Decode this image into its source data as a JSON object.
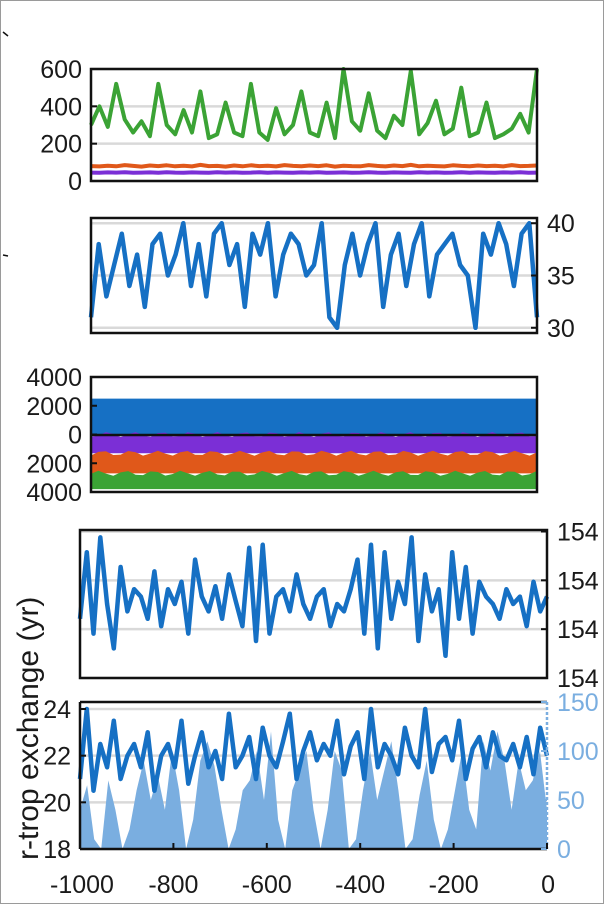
{
  "chart_data": [
    {
      "type": "line",
      "xlim": [
        -1000,
        0
      ],
      "ylim": [
        0,
        600
      ],
      "yticks": [
        "0",
        "200",
        "400",
        "600"
      ],
      "grid": true,
      "series": [
        {
          "color": "#3ba335",
          "values": [
            300,
            400,
            290,
            520,
            330,
            260,
            320,
            240,
            520,
            300,
            250,
            380,
            260,
            480,
            230,
            250,
            420,
            260,
            240,
            520,
            260,
            220,
            390,
            250,
            300,
            480,
            260,
            240,
            420,
            230,
            600,
            320,
            270,
            470,
            270,
            230,
            350,
            300,
            590,
            250,
            310,
            430,
            250,
            280,
            500,
            240,
            260,
            420,
            230,
            250,
            280,
            360,
            260,
            600
          ]
        },
        {
          "color": "#e0581a",
          "values": [
            80,
            78,
            82,
            79,
            85,
            81,
            77,
            83,
            80,
            84,
            79,
            82,
            78,
            86,
            80,
            81,
            77,
            83,
            79,
            84,
            80,
            82,
            78,
            85,
            81,
            79,
            83,
            80,
            84,
            77,
            82,
            80,
            79,
            85,
            81,
            78,
            83,
            80,
            86,
            79,
            82,
            80,
            78,
            84,
            81,
            79,
            83,
            80,
            82,
            78,
            85,
            80,
            81,
            83
          ]
        },
        {
          "color": "#7b2fd6",
          "values": [
            45,
            44,
            46,
            45,
            47,
            44,
            45,
            46,
            44,
            47,
            45,
            44,
            46,
            45,
            44,
            47,
            45,
            46,
            44,
            45,
            47,
            44,
            46,
            45,
            44,
            46,
            45,
            47,
            44,
            45,
            46,
            44,
            45,
            47,
            45,
            44,
            46,
            45,
            44,
            47,
            45,
            46,
            44,
            45,
            47,
            44,
            46,
            45,
            44,
            46,
            45,
            47,
            44,
            45
          ]
        }
      ]
    },
    {
      "type": "line",
      "xlim": [
        -1000,
        0
      ],
      "ylim": [
        29.5,
        40.5
      ],
      "yticks": [
        "30",
        "35",
        "40"
      ],
      "grid": true,
      "series": [
        {
          "color": "#1670c4",
          "values": [
            31,
            38,
            33,
            36,
            39,
            34,
            37,
            32,
            38,
            39,
            35,
            37,
            40,
            34,
            38,
            33,
            39,
            40,
            36,
            38,
            32,
            39,
            37,
            40,
            33,
            37,
            39,
            38,
            35,
            36,
            40,
            31,
            30,
            36,
            39,
            35,
            38,
            40,
            32,
            37,
            39,
            34,
            38,
            40,
            33,
            37,
            38,
            39,
            36,
            35,
            30,
            39,
            37,
            40,
            38,
            34,
            39,
            40,
            31
          ]
        }
      ]
    },
    {
      "type": "area",
      "xlim": [
        -1000,
        0
      ],
      "ylim": [
        -4000,
        4000
      ],
      "yticks": [
        "4000",
        "2000",
        "0",
        "2000",
        "4000"
      ],
      "grid": true,
      "bands": [
        {
          "color": "#1670c4",
          "from": 0,
          "to": 2500
        },
        {
          "color": "#7b2fd6",
          "from": 0,
          "to": -1300
        },
        {
          "color": "#e0581a",
          "from": -1300,
          "to": -2700
        },
        {
          "color": "#3ba335",
          "from": -2700,
          "to": -3800
        }
      ]
    },
    {
      "type": "line",
      "xlim": [
        -1000,
        0
      ],
      "ylim": [
        0,
        1
      ],
      "yticks": [
        "154",
        "154",
        "154",
        "154"
      ],
      "ylabel": "r-trop exchange (yr)",
      "grid": true,
      "series": [
        {
          "color": "#1670c4",
          "values": [
            0.4,
            0.85,
            0.3,
            0.95,
            0.5,
            0.2,
            0.75,
            0.45,
            0.6,
            0.55,
            0.4,
            0.72,
            0.35,
            0.6,
            0.5,
            0.65,
            0.3,
            0.8,
            0.55,
            0.45,
            0.62,
            0.4,
            0.7,
            0.52,
            0.35,
            0.88,
            0.25,
            0.9,
            0.3,
            0.55,
            0.6,
            0.45,
            0.7,
            0.5,
            0.4,
            0.55,
            0.6,
            0.35,
            0.5,
            0.45,
            0.6,
            0.8,
            0.3,
            0.9,
            0.2,
            0.85,
            0.4,
            0.65,
            0.5,
            0.95,
            0.25,
            0.7,
            0.45,
            0.6,
            0.15,
            0.85,
            0.4,
            0.75,
            0.3,
            0.65,
            0.55,
            0.5,
            0.4,
            0.6,
            0.5,
            0.55,
            0.35,
            0.65,
            0.45,
            0.55
          ]
        }
      ]
    },
    {
      "type": "line",
      "xlim": [
        -1000,
        0
      ],
      "xticks": [
        "-1000",
        "-800",
        "-600",
        "-400",
        "-200",
        "0"
      ],
      "ylim": [
        18,
        24.3
      ],
      "yticks": [
        "18",
        "20",
        "22",
        "24"
      ],
      "yticks_right": [
        "0",
        "50",
        "100",
        "150"
      ],
      "grid": true,
      "series": [
        {
          "color": "#1670c4",
          "values": [
            21,
            24,
            20.5,
            22.5,
            21.5,
            23.5,
            21,
            22,
            22.5,
            21.5,
            23,
            20.5,
            22,
            22.5,
            21.5,
            23.5,
            20.8,
            22,
            23,
            21.5,
            22.2,
            21,
            23.8,
            21.5,
            22,
            22.8,
            21,
            23.2,
            22,
            21.5,
            22.6,
            23.8,
            21,
            22.2,
            23,
            21.8,
            22.5,
            22,
            23.5,
            21.2,
            22.4,
            23,
            21,
            24,
            21.5,
            22.5,
            22,
            21.2,
            23.2,
            22,
            21.5,
            24,
            21.3,
            22.5,
            22.8,
            21.8,
            23.5,
            21,
            22.3,
            22.8,
            21.5,
            23,
            22,
            21.8,
            22.5,
            21.5,
            22.8,
            21.2,
            23.2,
            22
          ]
        },
        {
          "color": "#7aaee0",
          "fill": true,
          "values": [
            40,
            65,
            10,
            0,
            70,
            40,
            0,
            20,
            60,
            90,
            50,
            75,
            40,
            100,
            60,
            0,
            30,
            90,
            110,
            85,
            40,
            0,
            20,
            60,
            70,
            100,
            50,
            120,
            30,
            0,
            60,
            80,
            100,
            40,
            0,
            40,
            100,
            80,
            0,
            10,
            60,
            100,
            50,
            80,
            110,
            60,
            0,
            10,
            55,
            90,
            30,
            0,
            20,
            60,
            100,
            40,
            20,
            110,
            80,
            120,
            90,
            40,
            90,
            60,
            70,
            100,
            40
          ]
        }
      ]
    }
  ]
}
